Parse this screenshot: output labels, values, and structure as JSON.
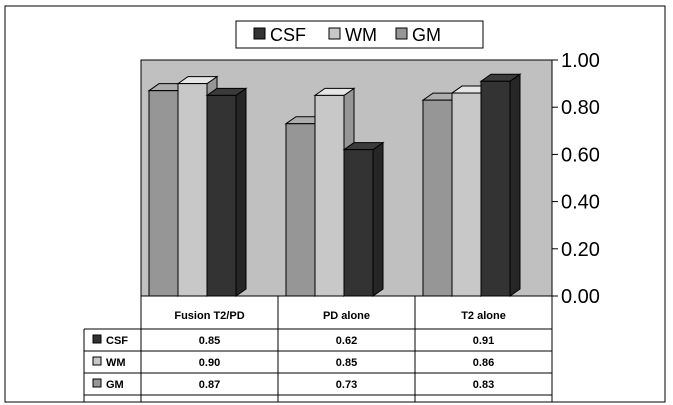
{
  "chart_data": {
    "type": "bar",
    "categories": [
      "Fusion T2/PD",
      "PD alone",
      "T2 alone"
    ],
    "series": [
      {
        "name": "GM",
        "values": [
          0.87,
          0.73,
          0.83
        ],
        "color": "#969696"
      },
      {
        "name": "WM",
        "values": [
          0.9,
          0.85,
          0.86
        ],
        "color": "#c8c8c8"
      },
      {
        "name": "CSF",
        "values": [
          0.85,
          0.62,
          0.91
        ],
        "color": "#333333"
      }
    ],
    "legend": [
      "CSF",
      "WM",
      "GM"
    ],
    "legend_position": "top",
    "table_rows": [
      {
        "name": "CSF",
        "values": [
          "0.85",
          "0.62",
          "0.91"
        ],
        "color": "#333333"
      },
      {
        "name": "WM",
        "values": [
          "0.90",
          "0.85",
          "0.86"
        ],
        "color": "#c8c8c8"
      },
      {
        "name": "GM",
        "values": [
          "0.87",
          "0.73",
          "0.83"
        ],
        "color": "#969696"
      }
    ],
    "y_ticks": [
      "0.00",
      "0.20",
      "0.40",
      "0.60",
      "0.80",
      "1.00"
    ],
    "ylim": [
      0,
      1
    ],
    "y_axis_side": "right",
    "grid": false,
    "style": "3d-clustered-bar-with-data-table"
  }
}
